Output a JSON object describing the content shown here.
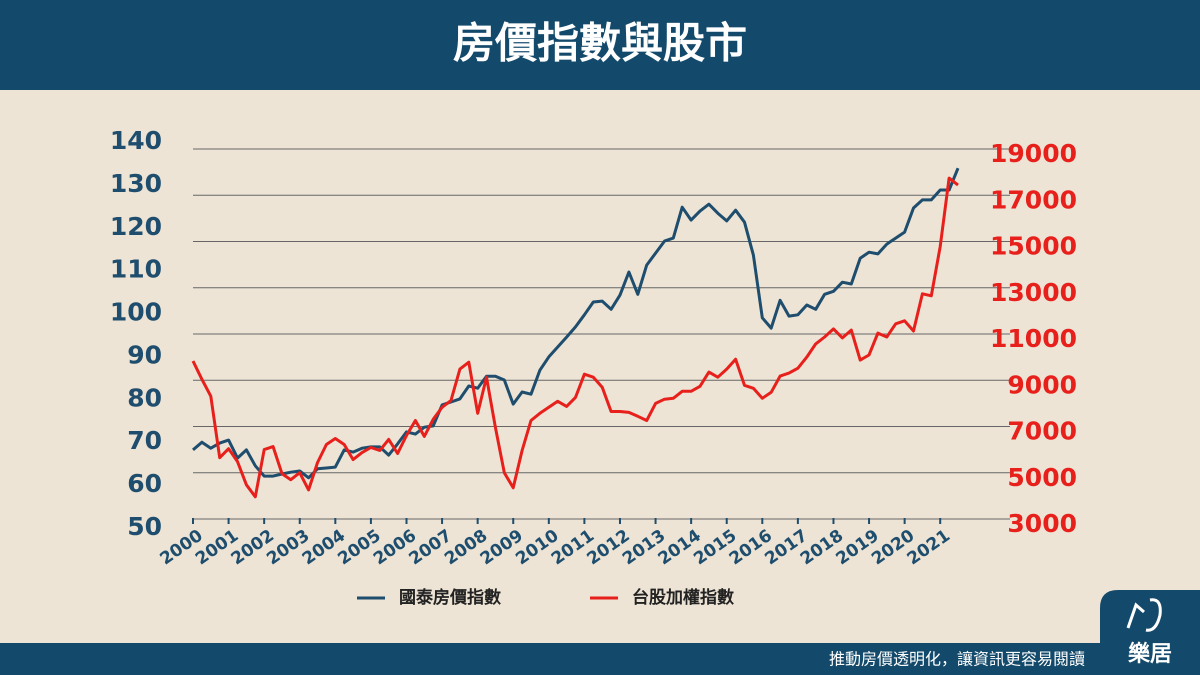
{
  "chart_data": {
    "type": "line",
    "title": "房價指數與股市",
    "x": [
      2000,
      2000.25,
      2000.5,
      2000.75,
      2001,
      2001.25,
      2001.5,
      2001.75,
      2002,
      2002.25,
      2002.5,
      2002.75,
      2003,
      2003.25,
      2003.5,
      2003.75,
      2004,
      2004.25,
      2004.5,
      2004.75,
      2005,
      2005.25,
      2005.5,
      2005.75,
      2006,
      2006.25,
      2006.5,
      2006.75,
      2007,
      2007.25,
      2007.5,
      2007.75,
      2008,
      2008.25,
      2008.5,
      2008.75,
      2009,
      2009.25,
      2009.5,
      2009.75,
      2010,
      2010.25,
      2010.5,
      2010.75,
      2011,
      2011.25,
      2011.5,
      2011.75,
      2012,
      2012.25,
      2012.5,
      2012.75,
      2013,
      2013.25,
      2013.5,
      2013.75,
      2014,
      2014.25,
      2014.5,
      2014.75,
      2015,
      2015.25,
      2015.5,
      2015.75,
      2016,
      2016.25,
      2016.5,
      2016.75,
      2017,
      2017.25,
      2017.5,
      2017.75,
      2018,
      2018.25,
      2018.5,
      2018.75,
      2019,
      2019.25,
      2019.5,
      2019.75,
      2020,
      2020.25,
      2020.5,
      2020.75,
      2021,
      2021.25,
      2021.5
    ],
    "xlim": [
      2000,
      2021.5
    ],
    "xticks": [
      2000,
      2001,
      2002,
      2003,
      2004,
      2005,
      2006,
      2007,
      2008,
      2009,
      2010,
      2011,
      2012,
      2013,
      2014,
      2015,
      2016,
      2017,
      2018,
      2019,
      2020,
      2021
    ],
    "ylim": [
      50,
      140
    ],
    "yticks": [
      50,
      60,
      70,
      80,
      90,
      100,
      110,
      120,
      130,
      140
    ],
    "y2lim": [
      3000,
      19000
    ],
    "y2ticks": [
      3000,
      5000,
      7000,
      9000,
      11000,
      13000,
      15000,
      17000,
      19000
    ],
    "grid": true,
    "series": [
      {
        "name": "國泰房價指數",
        "color": "#1e4d6e",
        "axis": "y",
        "values": [
          68.2,
          70,
          68.6,
          69.8,
          70.5,
          66.3,
          68.2,
          64.5,
          62.1,
          62.1,
          62.6,
          63,
          63.3,
          61.7,
          63.8,
          64,
          64.2,
          68.2,
          67.7,
          68.6,
          68.9,
          68.9,
          67,
          69.6,
          72.4,
          71.9,
          73.5,
          73.8,
          78.7,
          79.4,
          80.1,
          83.1,
          82.6,
          85.4,
          85.4,
          84.5,
          78.9,
          81.7,
          81.2,
          86.8,
          89.9,
          92.2,
          94.5,
          96.9,
          99.7,
          102.7,
          102.9,
          101,
          104.3,
          109.7,
          104.5,
          111.3,
          114.1,
          116.9,
          117.6,
          124.8,
          121.8,
          123.9,
          125.5,
          123.4,
          121.6,
          124.1,
          121.3,
          113.6,
          99,
          96.6,
          103.1,
          99.4,
          99.7,
          102,
          101,
          104.5,
          105.2,
          107.3,
          106.9,
          112.9,
          114.3,
          113.9,
          116.2,
          117.6,
          119,
          124.6,
          126.5,
          126.5,
          128.8,
          128.8,
          133.9
        ]
      },
      {
        "name": "台股加權指數",
        "color": "#e8201c",
        "axis": "y2",
        "values": [
          10090,
          9300,
          8570,
          5910,
          6300,
          5740,
          4740,
          4220,
          6260,
          6390,
          5220,
          4960,
          5260,
          4520,
          5700,
          6480,
          6740,
          6480,
          5830,
          6130,
          6350,
          6220,
          6700,
          6090,
          6870,
          7520,
          6830,
          7570,
          8090,
          8390,
          9740,
          10040,
          7830,
          9390,
          7220,
          5260,
          4610,
          6220,
          7520,
          7830,
          8090,
          8350,
          8130,
          8520,
          9520,
          9390,
          8960,
          7910,
          7910,
          7870,
          7700,
          7520,
          8260,
          8440,
          8480,
          8780,
          8780,
          9000,
          9610,
          9390,
          9740,
          10170,
          9040,
          8910,
          8480,
          8740,
          9440,
          9570,
          9780,
          10260,
          10830,
          11130,
          11480,
          11090,
          11430,
          10130,
          10350,
          11300,
          11130,
          11700,
          11830,
          11390,
          13000,
          12910,
          15040,
          18000,
          17700
        ]
      }
    ]
  },
  "tagline": "推動房價透明化，讓資訊更容易閱讀",
  "brand": "樂居"
}
